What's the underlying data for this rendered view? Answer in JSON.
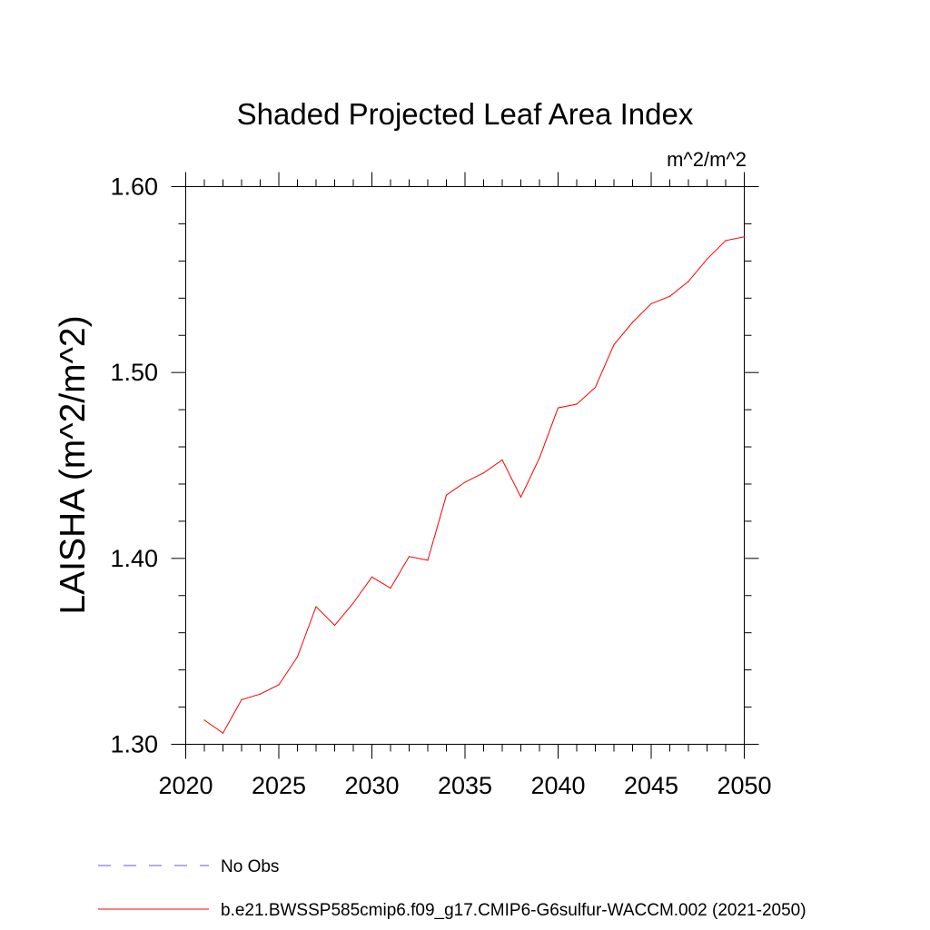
{
  "chart_data": {
    "type": "line",
    "title": "Shaded Projected Leaf Area Index",
    "units": "m^2/m^2",
    "ylabel": "LAISHA  (m^2/m^2)",
    "xlabel": "",
    "xlim": [
      2020,
      2050
    ],
    "ylim": [
      1.3,
      1.6
    ],
    "x_ticks": [
      "2020",
      "2025",
      "2030",
      "2035",
      "2040",
      "2045",
      "2050"
    ],
    "y_ticks": [
      "1.30",
      "1.40",
      "1.50",
      "1.60"
    ],
    "grid": false,
    "legend_position": "bottom",
    "legend": [
      {
        "label": "No Obs",
        "color": "#6a5acd",
        "dashed": true
      },
      {
        "label": "b.e21.BWSSP585cmip6.f09_g17.CMIP6-G6sulfur-WACCM.002 (2021-2050)",
        "color": "#ff0000",
        "dashed": false
      }
    ],
    "series": [
      {
        "name": "b.e21.BWSSP585cmip6.f09_g17.CMIP6-G6sulfur-WACCM.002 (2021-2050)",
        "color": "#ff0000",
        "x": [
          2021,
          2022,
          2023,
          2024,
          2025,
          2026,
          2027,
          2028,
          2029,
          2030,
          2031,
          2032,
          2033,
          2034,
          2035,
          2036,
          2037,
          2038,
          2039,
          2040,
          2041,
          2042,
          2043,
          2044,
          2045,
          2046,
          2047,
          2048,
          2049,
          2050
        ],
        "y": [
          1.313,
          1.306,
          1.324,
          1.327,
          1.332,
          1.347,
          1.374,
          1.364,
          1.376,
          1.39,
          1.384,
          1.401,
          1.399,
          1.434,
          1.441,
          1.446,
          1.453,
          1.433,
          1.454,
          1.481,
          1.483,
          1.492,
          1.515,
          1.527,
          1.537,
          1.541,
          1.549,
          1.561,
          1.571,
          1.573
        ]
      }
    ]
  }
}
